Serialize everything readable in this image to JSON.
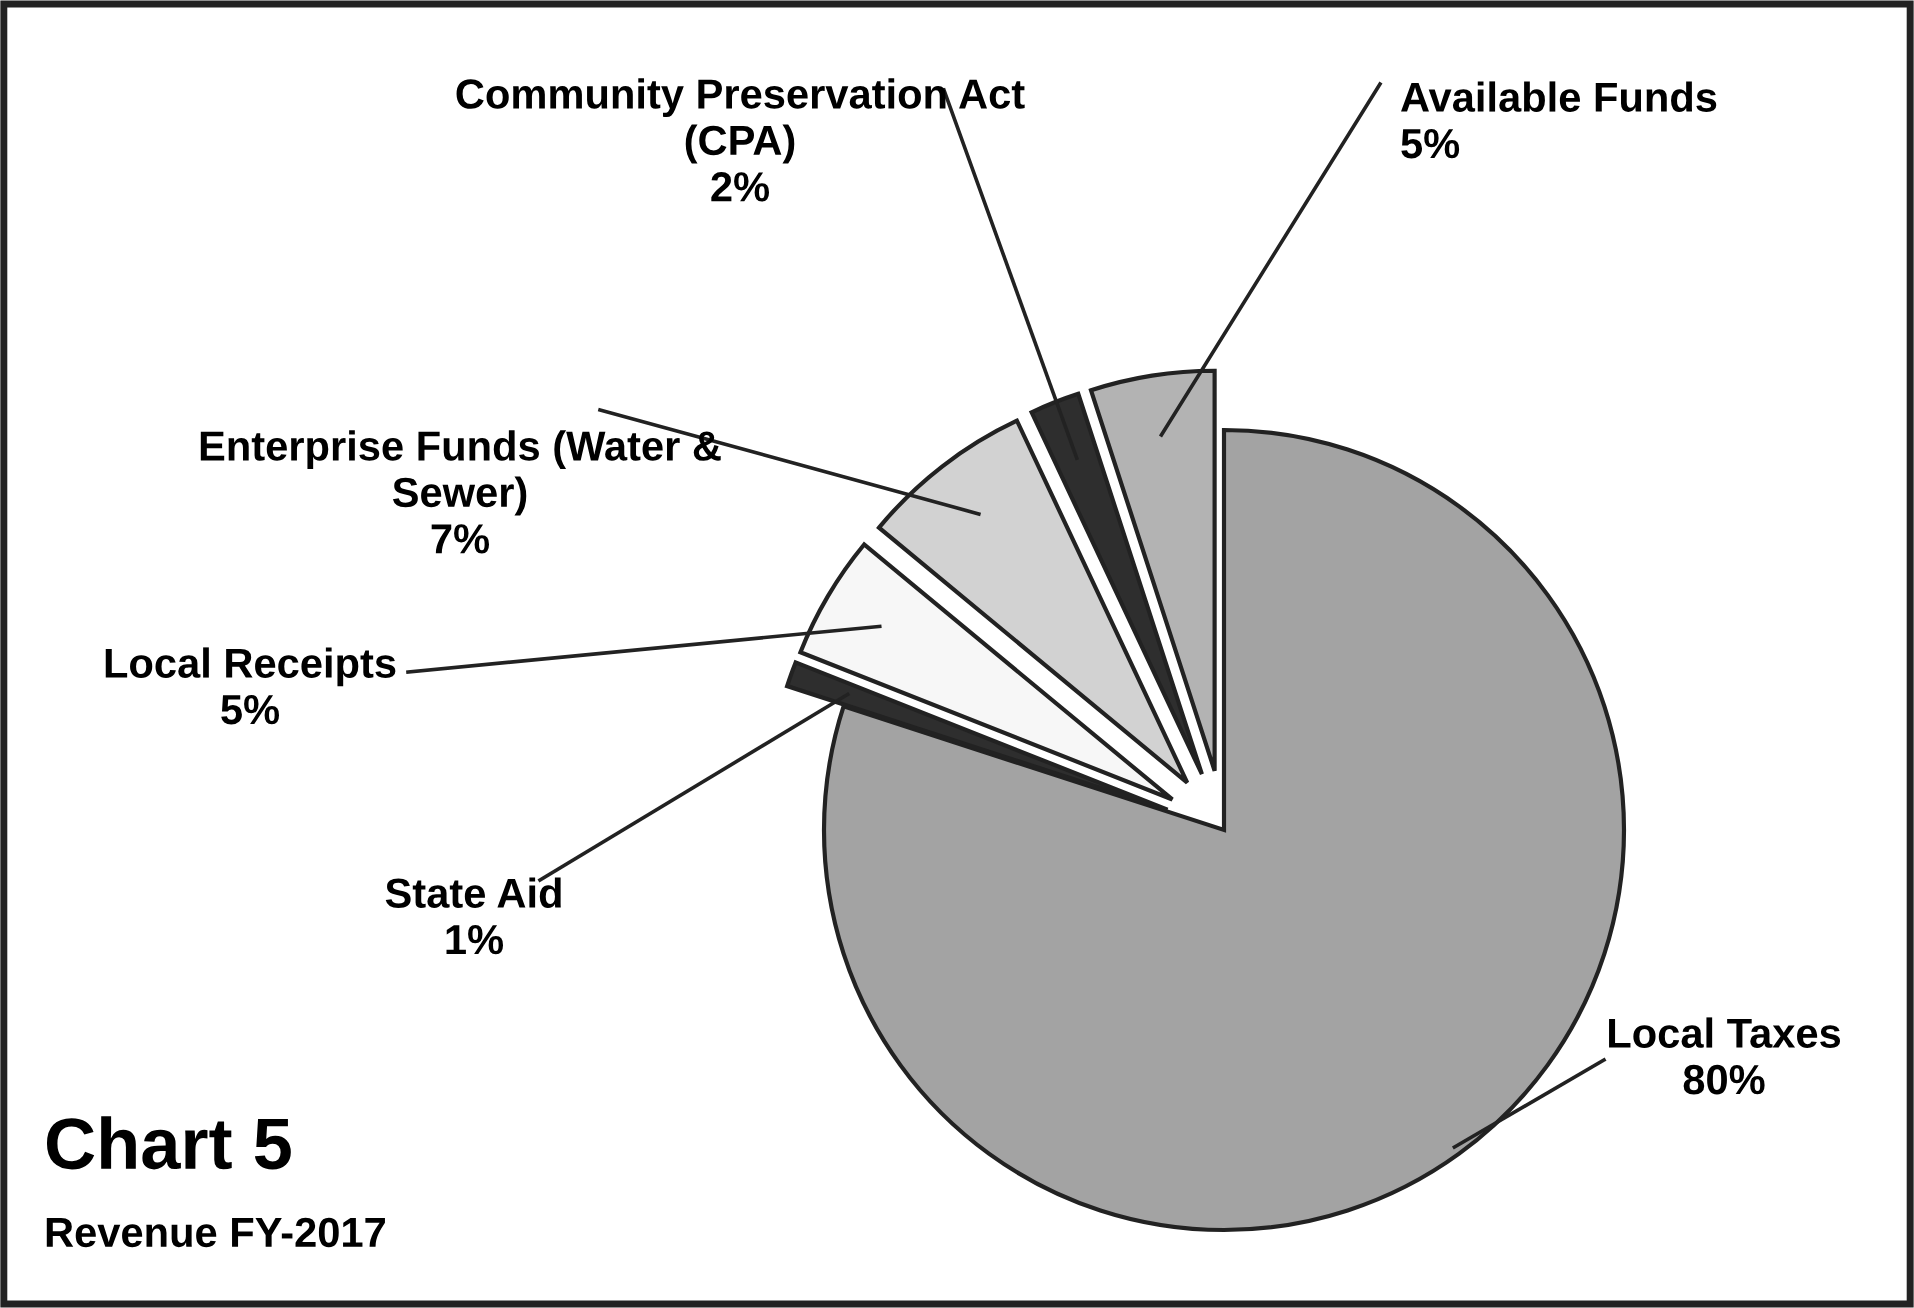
{
  "chart_data": {
    "type": "pie",
    "title": "Chart 5",
    "subtitle": "Revenue FY-2017",
    "categories": [
      "Local Taxes",
      "State Aid",
      "Local Receipts",
      "Enterprise Funds (Water & Sewer)",
      "Community Preservation Act (CPA)",
      "Available Funds"
    ],
    "values": [
      80,
      1,
      5,
      7,
      2,
      5
    ],
    "colors": [
      "#a3a3a3",
      "#2e2e2e",
      "#f7f7f7",
      "#d2d2d2",
      "#2e2e2e",
      "#b3b3b3"
    ],
    "value_labels": [
      "80%",
      "1%",
      "5%",
      "7%",
      "2%",
      "5%"
    ]
  }
}
